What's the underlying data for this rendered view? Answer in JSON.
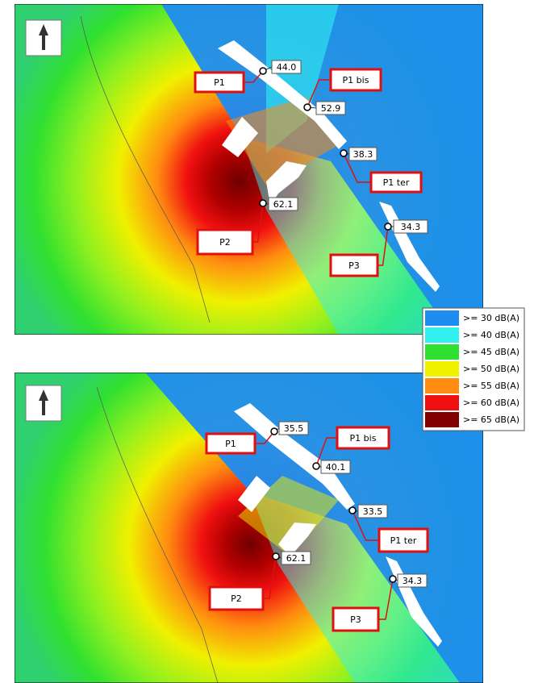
{
  "maps": [
    {
      "receivers": [
        {
          "label": "P1",
          "value": "44.0"
        },
        {
          "label": "P1 bis",
          "value": "52.9"
        },
        {
          "label": "P1 ter",
          "value": "38.3"
        },
        {
          "label": "P2",
          "value": "62.1"
        },
        {
          "label": "P3",
          "value": "34.3"
        }
      ]
    },
    {
      "receivers": [
        {
          "label": "P1",
          "value": "35.5"
        },
        {
          "label": "P1 bis",
          "value": "40.1"
        },
        {
          "label": "P1 ter",
          "value": "33.5"
        },
        {
          "label": "P2",
          "value": "62.1"
        },
        {
          "label": "P3",
          "value": "34.3"
        }
      ]
    }
  ],
  "legend": [
    {
      "label": ">= 30 dB(A)",
      "color": "#1e8cf0"
    },
    {
      "label": ">= 40 dB(A)",
      "color": "#30f0f0"
    },
    {
      "label": ">= 45 dB(A)",
      "color": "#30e030"
    },
    {
      "label": ">= 50 dB(A)",
      "color": "#f0f000"
    },
    {
      "label": ">= 55 dB(A)",
      "color": "#ff8c10"
    },
    {
      "label": ">= 60 dB(A)",
      "color": "#f01010"
    },
    {
      "label": ">= 65 dB(A)",
      "color": "#800000"
    }
  ]
}
